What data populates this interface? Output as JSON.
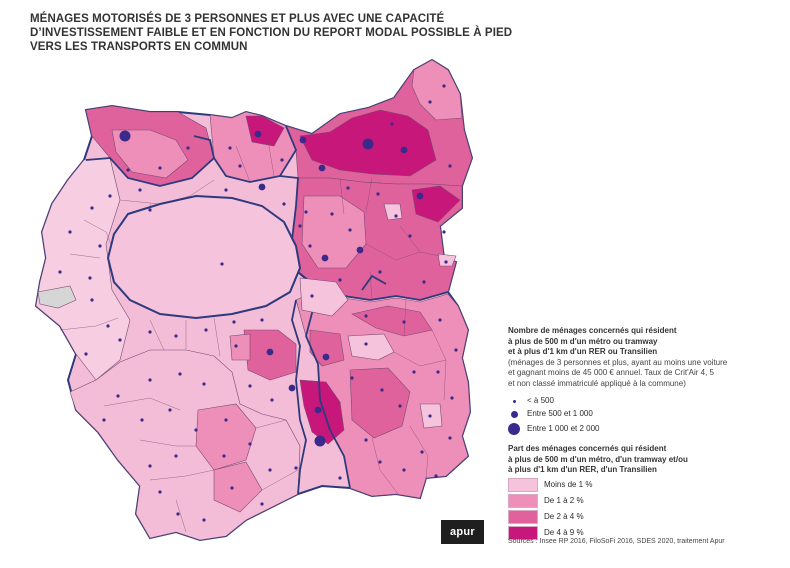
{
  "title_lines": [
    "MÉNAGES MOTORISÉS DE 3 PERSONNES ET PLUS AVEC UNE CAPACITÉ",
    "D’INVESTISSEMENT FAIBLE ET EN FONCTION DU REPORT MODAL POSSIBLE À PIED",
    "VERS LES TRANSPORTS EN COMMUN"
  ],
  "legend": {
    "count_title_lines": [
      "Nombre de ménages concernés qui résident",
      "à plus de 500 m d'un métro ou tramway",
      "et à plus d'1 km d'un RER ou Transilien"
    ],
    "count_note_lines": [
      "(ménages de 3 personnes et plus, ayant au moins une voiture",
      "et gagnant moins de 45 000 € annuel. Taux de Crit'Air 4, 5",
      "et non classé immatriculé appliqué à la commune)"
    ],
    "count_items": [
      {
        "label": "< à 500"
      },
      {
        "label": "Entre 500 et 1 000"
      },
      {
        "label": "Entre 1 000 et 2 000"
      }
    ],
    "share_title_lines": [
      "Part des ménages concernés qui résident",
      "à plus de 500 m d'un  métro, d'un tramway et/ou",
      "à plus d'1 km d'un RER, d'un Transilien"
    ],
    "share_items": [
      {
        "label": "Moins de 1 %",
        "color": "#f6c3dc"
      },
      {
        "label": "De 1 à 2 %",
        "color": "#ee8fb9"
      },
      {
        "label": "De 2 à 4 %",
        "color": "#e0629c"
      },
      {
        "label": "De 4 à 9 %",
        "color": "#c8177a"
      }
    ],
    "dot_color": "#3b2a8c"
  },
  "logo": "apur",
  "sources": "Sources : Insee RP 2016, FiloSoFi 2016, SDES 2020, traitement Apur"
}
